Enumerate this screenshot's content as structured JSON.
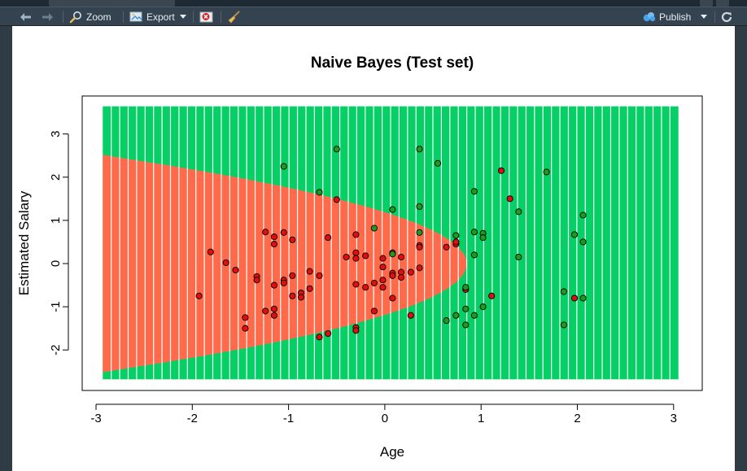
{
  "toolbar": {
    "zoom_label": "Zoom",
    "export_label": "Export",
    "publish_label": "Publish"
  },
  "icons": [
    "back-arrow-icon",
    "forward-arrow-icon",
    "zoom-icon",
    "export-icon",
    "remove-plot-icon",
    "broom-icon",
    "publish-icon",
    "refresh-icon",
    "chevron-down-icon"
  ],
  "colors": {
    "region_red": "#FF6A4A",
    "region_green": "#06CF66",
    "point_red": "#E20E0E",
    "point_green": "#1E9A1E"
  },
  "chart_data": {
    "type": "scatter",
    "title": "Naive Bayes (Test set)",
    "xlabel": "Age",
    "ylabel": "Estimated Salary",
    "xlim": [
      -3,
      3.1
    ],
    "ylim": [
      -2.9,
      3.8
    ],
    "xticks": [
      -3,
      -2,
      -1,
      0,
      1,
      2,
      3
    ],
    "yticks": [
      -2,
      -1,
      0,
      1,
      2,
      3
    ],
    "grid": false,
    "legend": "none",
    "background_grid": {
      "x_range": [
        -2.93,
        3.05
      ],
      "y_range": [
        -2.68,
        3.64
      ],
      "boundary": "red where x < 0.85 - 0.6 * y * y; green otherwise"
    },
    "series": [
      {
        "color": "#E20E0E",
        "points": [
          [
            -1.93,
            -0.75
          ],
          [
            -1.81,
            0.27
          ],
          [
            -1.65,
            0.02
          ],
          [
            -1.55,
            -0.15
          ],
          [
            -1.45,
            -1.25
          ],
          [
            -1.45,
            -1.5
          ],
          [
            -1.33,
            -0.3
          ],
          [
            -1.33,
            -0.38
          ],
          [
            -1.24,
            0.73
          ],
          [
            -1.24,
            -1.1
          ],
          [
            -1.15,
            0.62
          ],
          [
            -1.15,
            0.45
          ],
          [
            -1.15,
            -0.5
          ],
          [
            -1.15,
            -1.05
          ],
          [
            -1.15,
            -1.2
          ],
          [
            -1.05,
            0.72
          ],
          [
            -1.05,
            -0.38
          ],
          [
            -1.05,
            -0.45
          ],
          [
            -0.96,
            0.55
          ],
          [
            -0.96,
            -0.28
          ],
          [
            -0.96,
            -0.75
          ],
          [
            -0.87,
            -0.68
          ],
          [
            -0.87,
            -0.78
          ],
          [
            -0.78,
            -0.18
          ],
          [
            -0.78,
            -0.58
          ],
          [
            -0.68,
            -0.28
          ],
          [
            -0.68,
            -1.7
          ],
          [
            -0.59,
            0.6
          ],
          [
            -0.59,
            -1.62
          ],
          [
            -0.4,
            0.15
          ],
          [
            -0.3,
            0.67
          ],
          [
            -0.3,
            0.25
          ],
          [
            -0.3,
            0.12
          ],
          [
            -0.3,
            -0.48
          ],
          [
            -0.3,
            -1.48
          ],
          [
            -0.3,
            -1.55
          ],
          [
            -0.2,
            0.18
          ],
          [
            -0.2,
            -0.55
          ],
          [
            -0.11,
            -0.45
          ],
          [
            -0.11,
            -1.1
          ],
          [
            -0.02,
            0.12
          ],
          [
            -0.02,
            -0.08
          ],
          [
            -0.02,
            -0.38
          ],
          [
            -0.02,
            -0.55
          ],
          [
            0.08,
            0.25
          ],
          [
            0.08,
            -0.22
          ],
          [
            0.08,
            -0.28
          ],
          [
            0.08,
            -0.8
          ],
          [
            0.17,
            0.15
          ],
          [
            0.17,
            -0.2
          ],
          [
            0.17,
            -0.32
          ],
          [
            0.27,
            -0.2
          ],
          [
            0.27,
            -1.2
          ],
          [
            0.36,
            0.42
          ],
          [
            0.36,
            0.38
          ],
          [
            0.36,
            -0.1
          ],
          [
            0.64,
            0.38
          ],
          [
            0.74,
            0.45
          ],
          [
            0.74,
            0.5
          ],
          [
            0.84,
            -0.6
          ],
          [
            1.11,
            -0.75
          ],
          [
            1.21,
            2.15
          ],
          [
            1.3,
            1.5
          ],
          [
            1.97,
            -0.8
          ],
          [
            -0.5,
            1.48
          ]
        ]
      },
      {
        "color": "#1E9A1E",
        "points": [
          [
            -1.05,
            2.25
          ],
          [
            -0.5,
            2.65
          ],
          [
            -0.68,
            1.65
          ],
          [
            -0.11,
            0.82
          ],
          [
            0.08,
            1.25
          ],
          [
            0.08,
            0.22
          ],
          [
            0.36,
            2.65
          ],
          [
            0.36,
            1.32
          ],
          [
            0.36,
            0.72
          ],
          [
            0.55,
            2.32
          ],
          [
            0.64,
            -1.32
          ],
          [
            0.74,
            0.65
          ],
          [
            0.74,
            -1.2
          ],
          [
            0.84,
            -1.05
          ],
          [
            0.84,
            -1.42
          ],
          [
            0.84,
            -0.55
          ],
          [
            0.93,
            1.67
          ],
          [
            0.93,
            0.73
          ],
          [
            0.93,
            0.2
          ],
          [
            0.93,
            -1.2
          ],
          [
            1.02,
            0.7
          ],
          [
            1.02,
            0.6
          ],
          [
            1.02,
            -1.0
          ],
          [
            1.39,
            1.2
          ],
          [
            1.39,
            0.15
          ],
          [
            1.68,
            2.12
          ],
          [
            1.86,
            -0.65
          ],
          [
            1.86,
            -1.42
          ],
          [
            1.97,
            0.67
          ],
          [
            2.06,
            1.12
          ],
          [
            2.06,
            0.5
          ],
          [
            2.06,
            -0.8
          ]
        ]
      }
    ]
  }
}
